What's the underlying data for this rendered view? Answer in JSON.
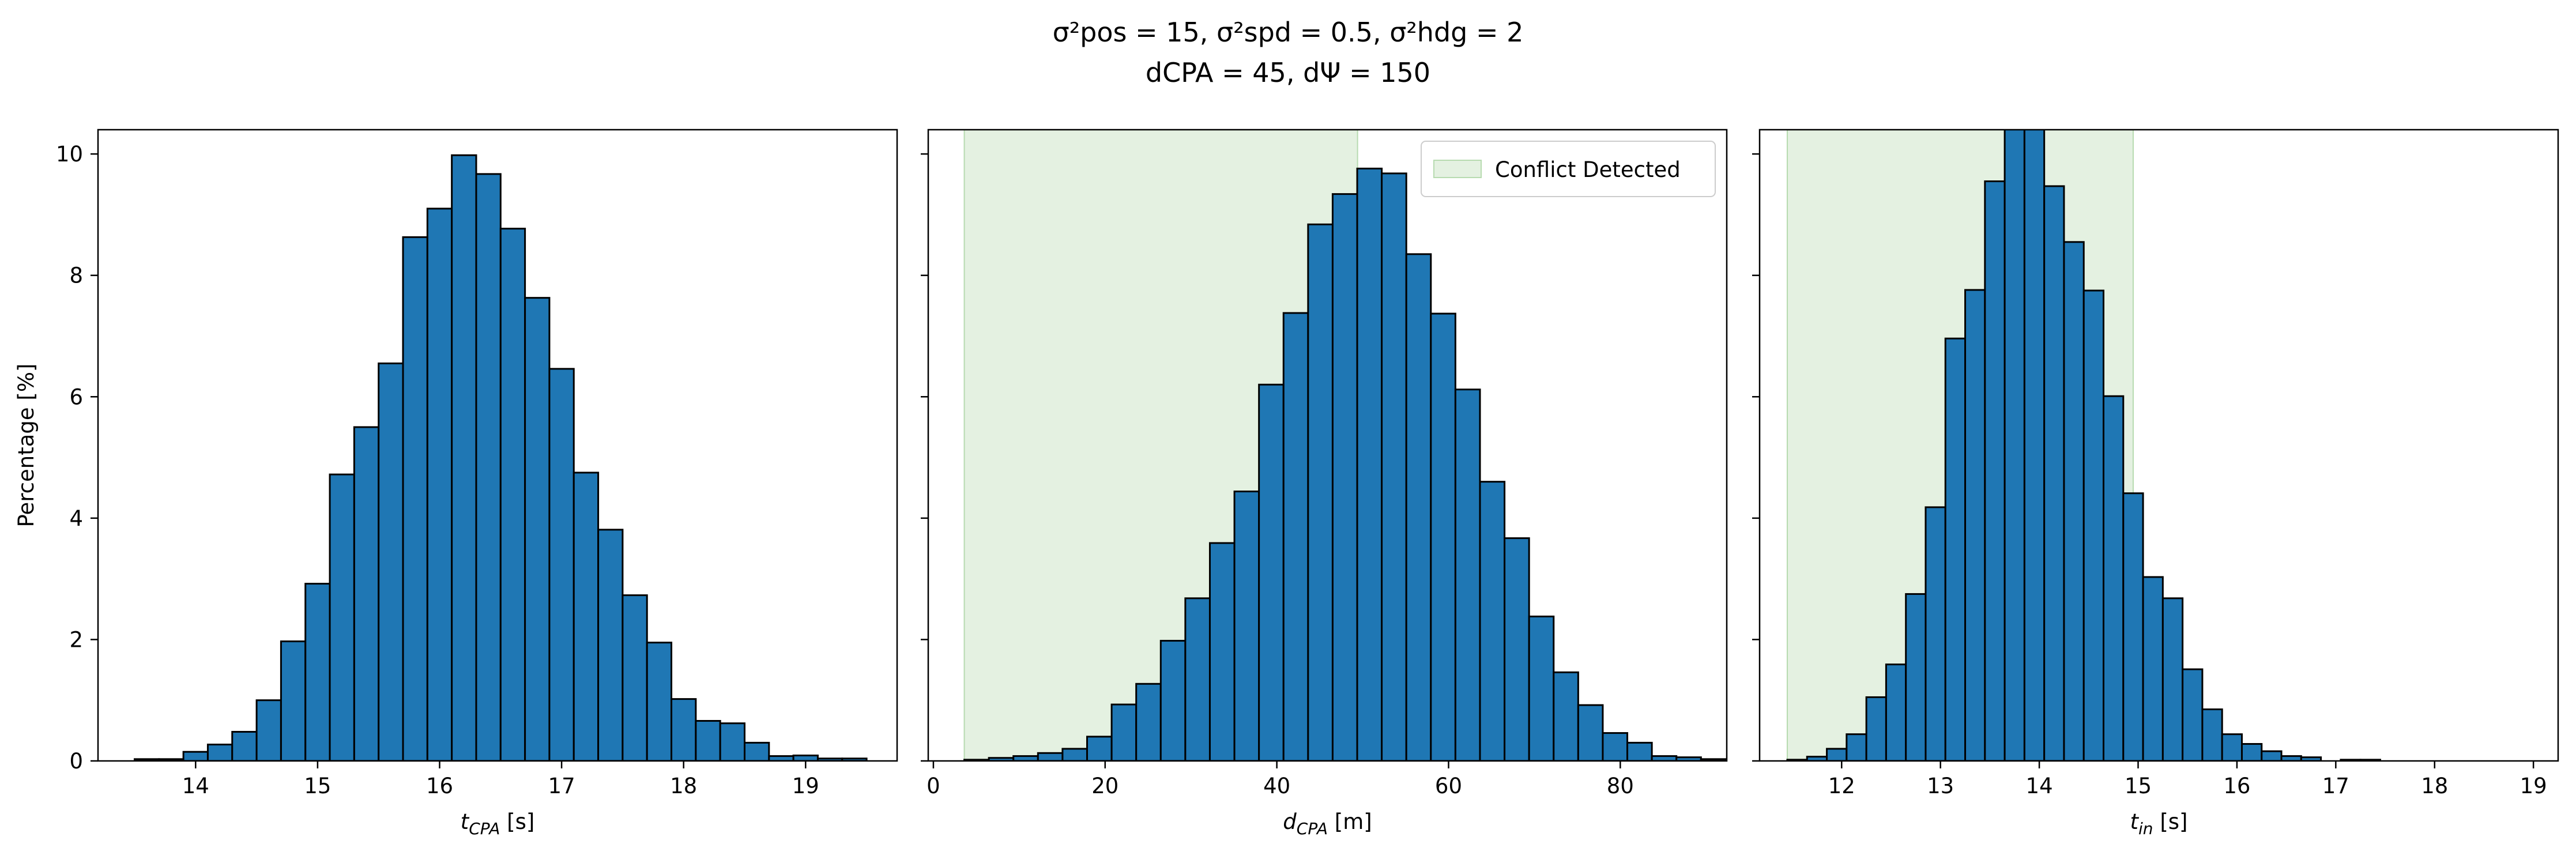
{
  "figure": {
    "title_line1": "σ²pos = 15, σ²spd = 0.5, σ²hdg = 2",
    "title_line2": "dCPA = 45, dΨ = 150"
  },
  "colors": {
    "bar_fill": "#1f77b4",
    "bar_edge": "#000000",
    "conflict_region": "#e4f1e1",
    "conflict_region_edge": "#b7dbb0"
  },
  "chart_data": [
    {
      "type": "bar",
      "ylabel": "Percentage [%]",
      "xlabel": "tCPA [s]",
      "xlim": [
        13.2,
        19.75
      ],
      "ylim": [
        0,
        10.4
      ],
      "xticks": [
        14,
        15,
        16,
        17,
        18,
        19
      ],
      "yticks": [
        0,
        2,
        4,
        6,
        8,
        10
      ],
      "bin_start": 13.5,
      "bin_width": 0.2,
      "values": [
        0.03,
        0.03,
        0.15,
        0.27,
        0.48,
        1.0,
        1.97,
        2.92,
        4.72,
        5.5,
        6.55,
        8.63,
        9.1,
        9.98,
        9.67,
        8.77,
        7.63,
        6.46,
        4.75,
        3.81,
        2.73,
        1.95,
        1.02,
        0.66,
        0.62,
        0.3,
        0.08,
        0.09,
        0.04,
        0.04
      ],
      "conflict_region": null,
      "legend": null
    },
    {
      "type": "bar",
      "ylabel": "",
      "xlabel": "dCPA [m]",
      "xlim": [
        -0.6,
        92.4
      ],
      "ylim": [
        0,
        10.4
      ],
      "xticks": [
        0,
        20,
        40,
        60,
        80
      ],
      "yticks": [
        0,
        2,
        4,
        6,
        8,
        10
      ],
      "bin_start": 3.6,
      "bin_width": 2.86,
      "values": [
        0.02,
        0.05,
        0.08,
        0.13,
        0.2,
        0.4,
        0.93,
        1.27,
        1.98,
        2.68,
        3.59,
        4.44,
        6.2,
        7.38,
        8.84,
        9.34,
        9.76,
        9.68,
        8.35,
        7.37,
        6.12,
        4.6,
        3.67,
        2.38,
        1.46,
        0.92,
        0.46,
        0.3,
        0.08,
        0.06,
        0.03
      ],
      "conflict_region": [
        3.6,
        49.4
      ],
      "legend": {
        "label": "Conflict Detected",
        "placement": "upper right"
      }
    },
    {
      "type": "bar",
      "ylabel": "",
      "xlabel": "tin [s]",
      "xlim": [
        11.17,
        19.25
      ],
      "ylim": [
        0,
        10.4
      ],
      "xticks": [
        12,
        13,
        14,
        15,
        16,
        17,
        18,
        19
      ],
      "yticks": [
        0,
        2,
        4,
        6,
        8,
        10
      ],
      "bin_start": 11.45,
      "bin_width": 0.2,
      "values": [
        0.02,
        0.07,
        0.2,
        0.44,
        1.05,
        1.59,
        2.75,
        4.18,
        6.96,
        7.76,
        9.55,
        10.8,
        10.44,
        9.47,
        8.55,
        7.75,
        6.01,
        4.41,
        3.03,
        2.68,
        1.51,
        0.85,
        0.44,
        0.28,
        0.16,
        0.08,
        0.06,
        0.0,
        0.02,
        0.02
      ],
      "conflict_region": [
        11.45,
        14.95
      ],
      "legend": null
    }
  ]
}
